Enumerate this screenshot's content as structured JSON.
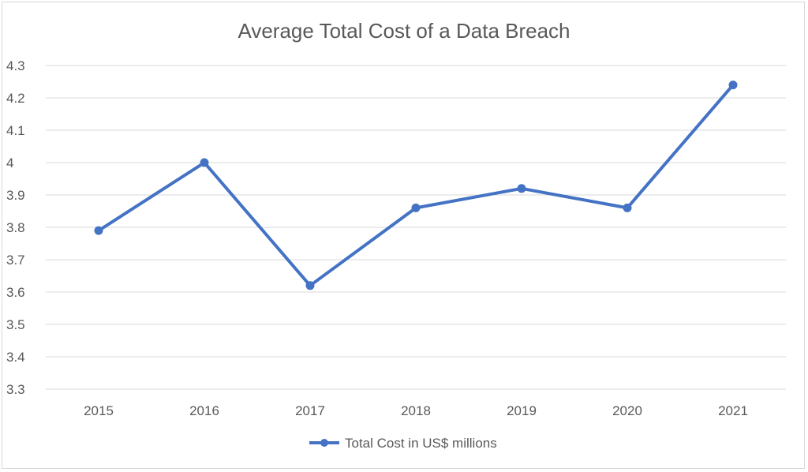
{
  "chart_data": {
    "type": "line",
    "title": "Average Total Cost of a Data Breach",
    "categories": [
      "2015",
      "2016",
      "2017",
      "2018",
      "2019",
      "2020",
      "2021"
    ],
    "series": [
      {
        "name": "Total Cost in US$ millions",
        "values": [
          3.79,
          4.0,
          3.62,
          3.86,
          3.92,
          3.86,
          4.24
        ],
        "color": "#4472C4"
      }
    ],
    "ylim": [
      3.3,
      4.3
    ],
    "yticks": [
      "3.3",
      "3.4",
      "3.5",
      "3.6",
      "3.7",
      "3.8",
      "3.9",
      "4",
      "4.1",
      "4.2",
      "4.3"
    ],
    "grid": true,
    "legend_position": "bottom"
  }
}
